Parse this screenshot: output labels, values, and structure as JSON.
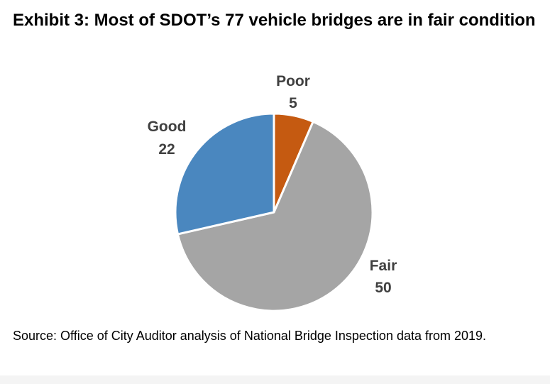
{
  "exhibit": {
    "title": "Exhibit 3: Most of SDOT’s 77 vehicle bridges are in fair condition",
    "source": "Source: Office of City Auditor analysis of National Bridge Inspection data from 2019."
  },
  "chart_data": {
    "type": "pie",
    "title": "Exhibit 3: Most of SDOT’s 77 vehicle bridges are in fair condition",
    "total": 77,
    "start": "12 o'clock",
    "direction": "clockwise",
    "slices": [
      {
        "label": "Poor",
        "value": 5,
        "color": "#C55A11"
      },
      {
        "label": "Fair",
        "value": 50,
        "color": "#A5A5A5"
      },
      {
        "label": "Good",
        "value": 22,
        "color": "#4A87BF"
      }
    ],
    "separator_color": "#ffffff"
  }
}
